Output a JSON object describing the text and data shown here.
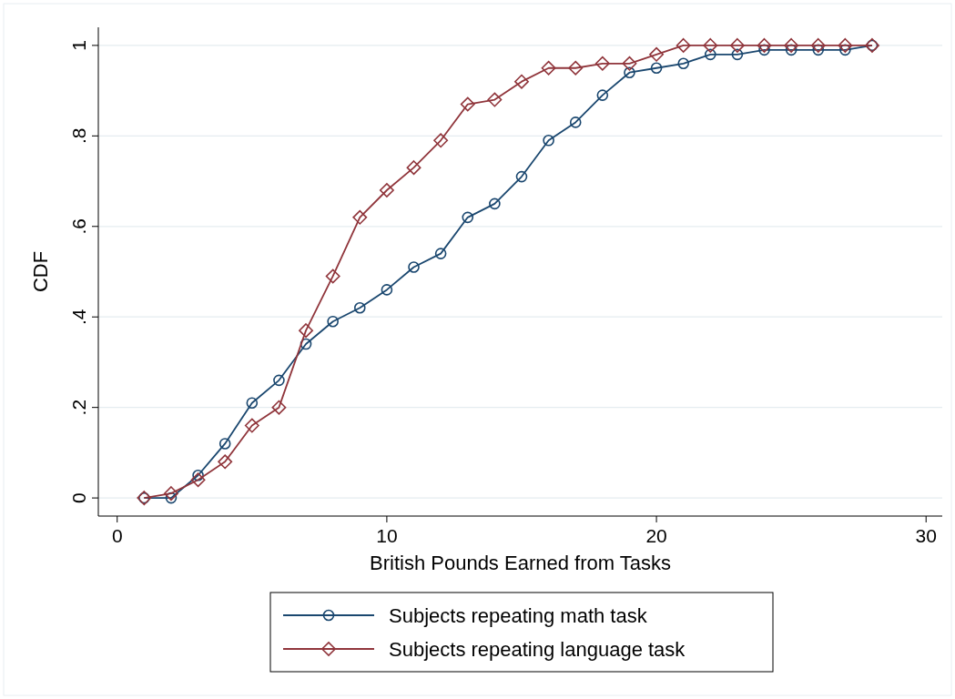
{
  "chart_data": {
    "type": "line",
    "xlabel": "British Pounds Earned from Tasks",
    "ylabel": "CDF",
    "x": [
      1,
      2,
      3,
      4,
      5,
      6,
      7,
      8,
      9,
      10,
      11,
      12,
      13,
      14,
      15,
      16,
      17,
      18,
      19,
      20,
      21,
      22,
      23,
      24,
      25,
      26,
      27,
      28
    ],
    "series": [
      {
        "name": "Subjects repeating math task",
        "color": "#1a476f",
        "marker": "circle",
        "values": [
          0,
          0,
          0.05,
          0.12,
          0.21,
          0.26,
          0.34,
          0.39,
          0.42,
          0.46,
          0.51,
          0.54,
          0.62,
          0.65,
          0.71,
          0.79,
          0.83,
          0.89,
          0.94,
          0.95,
          0.96,
          0.98,
          0.98,
          0.99,
          0.99,
          0.99,
          0.99,
          1
        ]
      },
      {
        "name": "Subjects repeating language task",
        "color": "#90353b",
        "marker": "diamond",
        "values": [
          0,
          0.01,
          0.04,
          0.08,
          0.16,
          0.2,
          0.37,
          0.49,
          0.62,
          0.68,
          0.73,
          0.79,
          0.87,
          0.88,
          0.92,
          0.95,
          0.95,
          0.96,
          0.96,
          0.98,
          1,
          1,
          1,
          1,
          1,
          1,
          1,
          1
        ]
      }
    ],
    "xlim": [
      -0.7,
      30.6
    ],
    "xticks": [
      0,
      10,
      20,
      30
    ],
    "ylim": [
      -0.04,
      1.04
    ],
    "yticks": [
      0,
      {
        "value": 0.2,
        "label": ".2"
      },
      {
        "value": 0.4,
        "label": ".4"
      },
      {
        "value": 0.6,
        "label": ".6"
      },
      {
        "value": 0.8,
        "label": ".8"
      },
      1
    ],
    "grid": "y",
    "legend": "bottom",
    "line_style": "solid"
  }
}
